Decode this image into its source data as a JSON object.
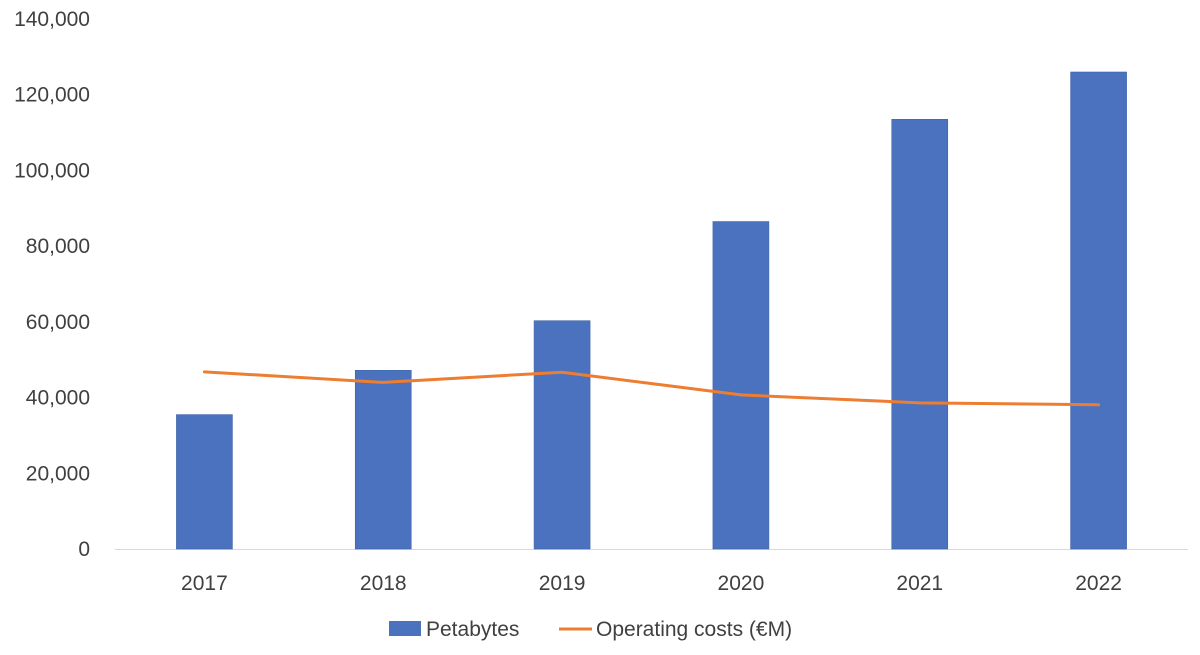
{
  "chart_data": {
    "type": "bar",
    "categories": [
      "2017",
      "2018",
      "2019",
      "2020",
      "2021",
      "2022"
    ],
    "series": [
      {
        "name": "Petabytes",
        "type": "bar",
        "color": "#4A72BE",
        "values": [
          35500,
          47200,
          60300,
          86500,
          113500,
          126000
        ]
      },
      {
        "name": "Operating costs (€M)",
        "type": "line",
        "color": "#ED7D31",
        "values": [
          46800,
          44000,
          46700,
          40700,
          38600,
          38100
        ]
      }
    ],
    "ylim": [
      0,
      140000
    ],
    "yticks": [
      "0",
      "20,000",
      "40,000",
      "60,000",
      "80,000",
      "100,000",
      "120,000",
      "140,000"
    ],
    "ytick_values": [
      0,
      20000,
      40000,
      60000,
      80000,
      100000,
      120000,
      140000
    ],
    "grid": false,
    "legend_position": "bottom",
    "title": "",
    "xlabel": "",
    "ylabel": ""
  }
}
